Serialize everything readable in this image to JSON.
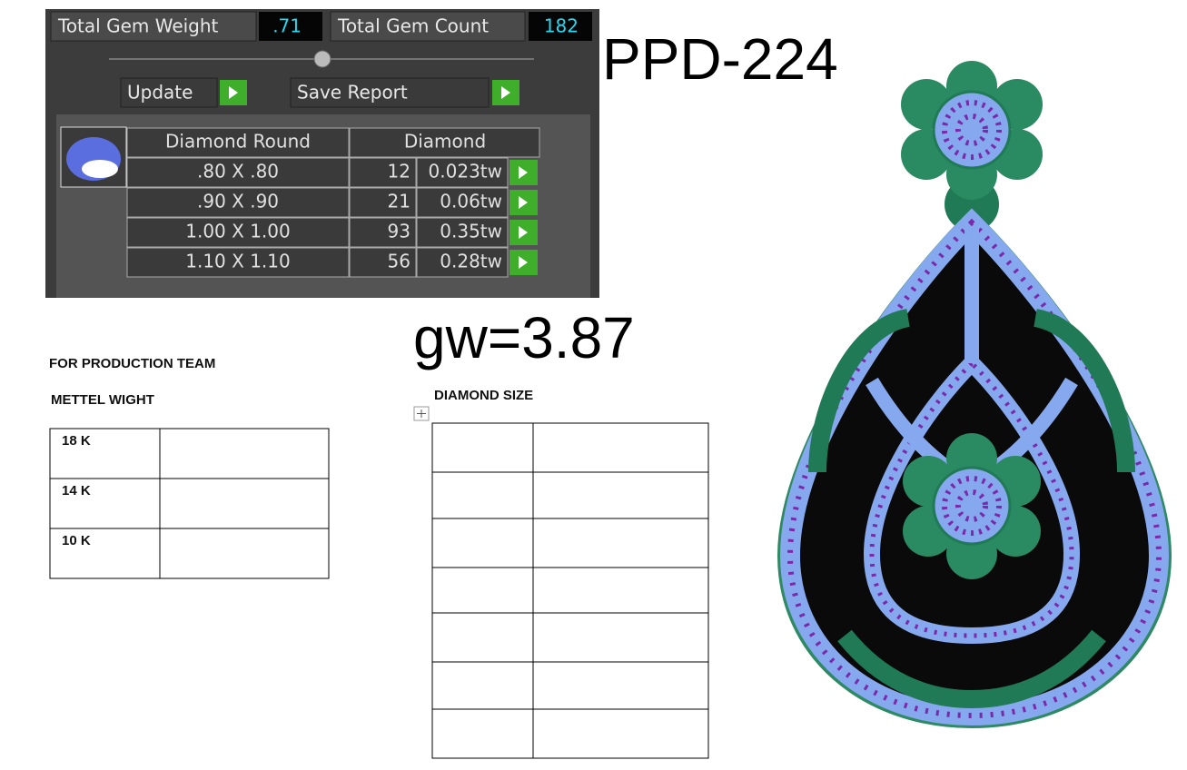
{
  "panel": {
    "total_gem_weight_label": "Total Gem Weight",
    "total_gem_weight": ".71",
    "total_gem_count_label": "Total Gem Count",
    "total_gem_count": "182",
    "update_button": "Update",
    "save_report_button": "Save Report",
    "table": {
      "header": [
        "Diamond Round",
        "Diamond"
      ],
      "rows": [
        [
          ".80 X .80",
          "12",
          "0.023tw"
        ],
        [
          ".90 X .90",
          "21",
          "0.06tw"
        ],
        [
          "1.00 X 1.00",
          "93",
          "0.35tw"
        ],
        [
          "1.10 X 1.10",
          "56",
          "0.28tw"
        ]
      ]
    }
  },
  "design_code": "PPD-224",
  "gold_weight": "gw=3.87",
  "production": {
    "title": "FOR PRODUCTION TEAM",
    "metal_weight_label": "METTEL WIGHT",
    "metal_table": {
      "rows": [
        "18 K",
        "14 K",
        "10 K"
      ]
    }
  },
  "diamond_size": {
    "title": "DIAMOND SIZE"
  }
}
